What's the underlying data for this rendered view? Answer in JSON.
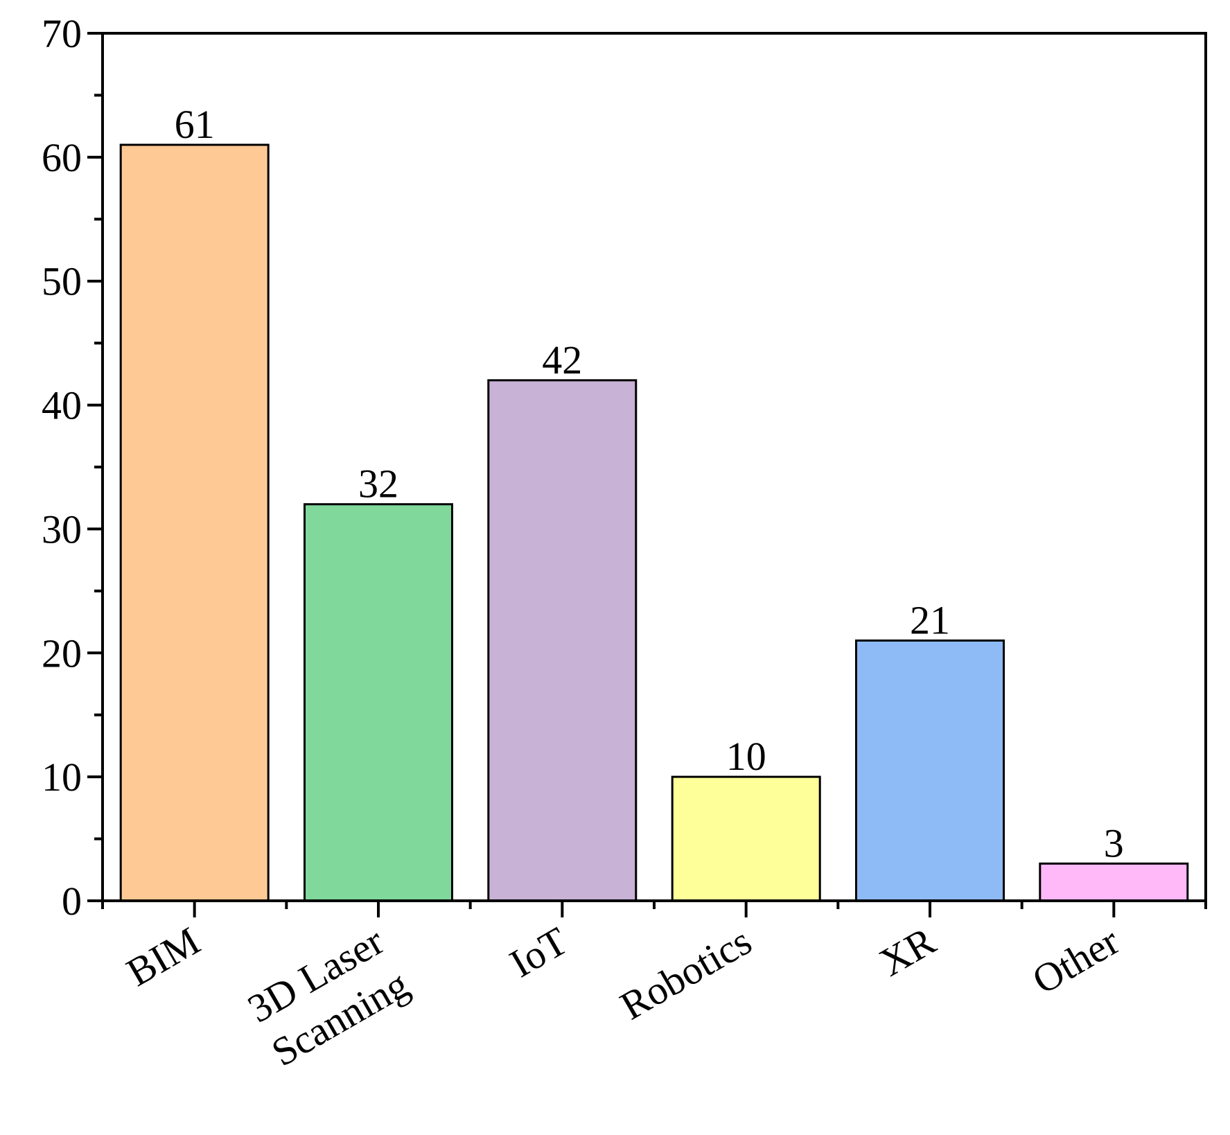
{
  "chart_data": {
    "type": "bar",
    "title": "",
    "xlabel": "",
    "ylabel": "",
    "categories": [
      {
        "lines": [
          "BIM"
        ]
      },
      {
        "lines": [
          "3D Laser",
          "Scanning"
        ]
      },
      {
        "lines": [
          "IoT"
        ]
      },
      {
        "lines": [
          "Robotics"
        ]
      },
      {
        "lines": [
          "XR"
        ]
      },
      {
        "lines": [
          "Other"
        ]
      }
    ],
    "values": [
      61,
      32,
      42,
      10,
      21,
      3
    ],
    "colors": [
      "#FFC995",
      "#80D89A",
      "#C8B2D6",
      "#FFFF99",
      "#8EBBF5",
      "#FFB8F8"
    ],
    "ylim": [
      0,
      70
    ],
    "yticks": [
      0,
      10,
      20,
      30,
      40,
      50,
      60,
      70
    ],
    "yminor_step": 5,
    "grid": false,
    "legend": "none"
  }
}
